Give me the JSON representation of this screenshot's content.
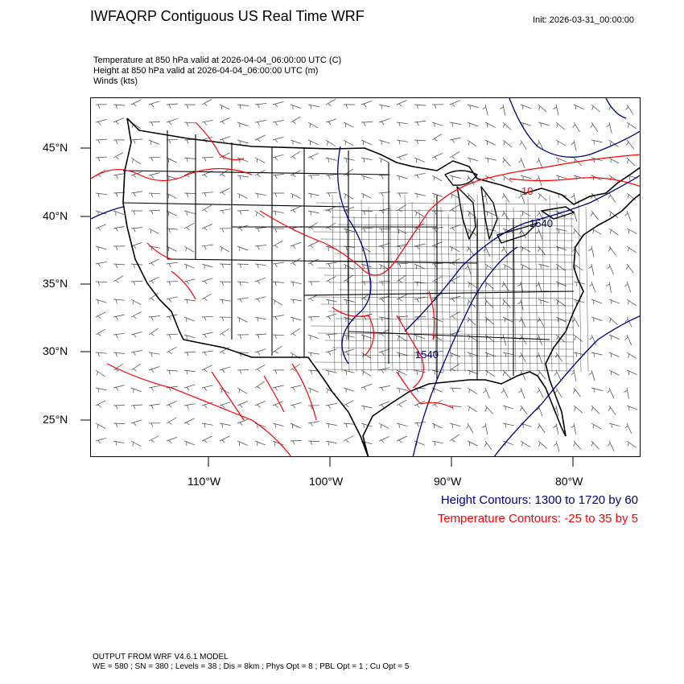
{
  "header": {
    "title": "IWFAQRP Contiguous US Real Time WRF",
    "init": "Init: 2026-03-31_00:00:00"
  },
  "fields": [
    "Temperature at 850 hPa valid at 2026-04-04_06:00:00 UTC   (C)",
    "Height at 850 hPa valid at 2026-04-04_06:00:00 UTC   (m)",
    "Winds   (kts)"
  ],
  "axes": {
    "lat_labels": [
      "45°N",
      "40°N",
      "35°N",
      "30°N",
      "25°N"
    ],
    "lon_labels": [
      "110°W",
      "100°W",
      "90°W",
      "80°W"
    ]
  },
  "map_labels": {
    "height_1540_ne": "1540",
    "height_1540_south": "1540",
    "temp_10": "10"
  },
  "legend": {
    "height": "Height Contours: 1300 to 1720 by 60",
    "temperature": "Temperature Contours: -25 to 35 by 5"
  },
  "colors": {
    "height": "#00007d",
    "temperature": "#ff0000",
    "boundaries": "#000000",
    "barbs": "#444444"
  },
  "footer": {
    "line1": "OUTPUT FROM WRF V4.6.1 MODEL",
    "line2": "WE = 580 ; SN = 380 ; Levels = 38 ; Dis = 8km ; Phys Opt = 8 ; PBL Opt = 1 ; Cu Opt = 5"
  }
}
